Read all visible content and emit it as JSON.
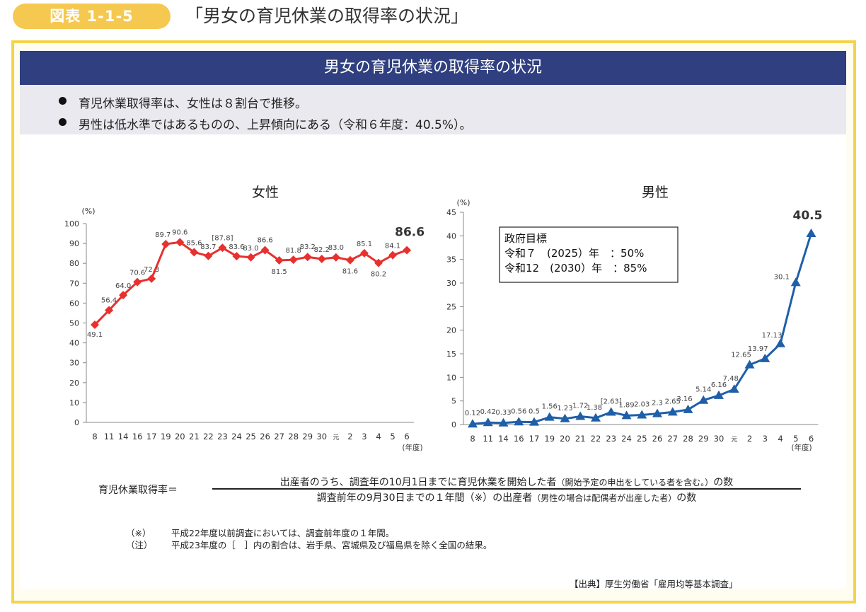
{
  "header": {
    "badge": "図表 1-1-5",
    "title": "「男女の育児休業の取得率の状況」"
  },
  "banner": "男女の育児休業の取得率の状況",
  "bullets": [
    "育児休業取得率は、女性は８割台で推移。",
    "男性は低水準ではあるものの、上昇傾向にある（令和６年度：40.5%）。"
  ],
  "chart_data": [
    {
      "type": "line",
      "title": "女性",
      "ylabel": "(%)",
      "xlabel": "(年度)",
      "ylim": [
        0,
        100
      ],
      "yticks": [
        0,
        10,
        20,
        30,
        40,
        50,
        60,
        70,
        80,
        90,
        100
      ],
      "categories": [
        "8",
        "11",
        "14",
        "16",
        "17",
        "19",
        "20",
        "21",
        "22",
        "23",
        "24",
        "25",
        "26",
        "27",
        "28",
        "29",
        "30",
        "元",
        "2",
        "3",
        "4",
        "5",
        "6"
      ],
      "values": [
        49.1,
        56.4,
        64.0,
        70.6,
        72.3,
        89.7,
        90.6,
        85.6,
        83.7,
        87.8,
        83.6,
        83.0,
        86.6,
        81.5,
        81.8,
        83.2,
        82.2,
        83.0,
        81.6,
        85.1,
        80.2,
        84.1,
        86.6
      ],
      "labels": [
        "49.1",
        "56.4",
        "64.0",
        "70.6",
        "72.3",
        "89.7",
        "90.6",
        "85.6",
        "83.7",
        "[87.8]",
        "83.6",
        "83.0",
        "86.6",
        "81.5",
        "81.8",
        "83.2",
        "82.2",
        "83.0",
        "81.6",
        "85.1",
        "80.2",
        "84.1",
        "86.6"
      ],
      "color": "#e8302e",
      "marker": "diamond"
    },
    {
      "type": "line",
      "title": "男性",
      "ylabel": "(%)",
      "xlabel": "(年度)",
      "ylim": [
        0,
        45
      ],
      "yticks": [
        0,
        5,
        10,
        15,
        20,
        25,
        30,
        35,
        40,
        45
      ],
      "categories": [
        "8",
        "11",
        "14",
        "16",
        "17",
        "19",
        "20",
        "21",
        "22",
        "23",
        "24",
        "25",
        "26",
        "27",
        "28",
        "29",
        "30",
        "元",
        "2",
        "3",
        "4",
        "5",
        "6"
      ],
      "values": [
        0.12,
        0.42,
        0.33,
        0.56,
        0.5,
        1.56,
        1.23,
        1.72,
        1.38,
        2.63,
        1.89,
        2.03,
        2.3,
        2.65,
        3.16,
        5.14,
        6.16,
        7.48,
        12.65,
        13.97,
        17.13,
        30.1,
        40.5
      ],
      "labels": [
        "0.12",
        "0.42",
        "0.33",
        "0.56",
        "0.5",
        "1.56",
        "1.23",
        "1.72",
        "1.38",
        "[2.63]",
        "1.89",
        "2.03",
        "2.3",
        "2.65",
        "3.16",
        "5.14",
        "6.16",
        "7.48",
        "12.65",
        "13.97",
        "17.13",
        "30.1",
        "40.5"
      ],
      "color": "#1f5fa8",
      "marker": "triangle",
      "annotation": [
        "政府目標",
        "令和７　(2025）年　：50%",
        "令和12　(2030）年　：85%"
      ]
    }
  ],
  "formula": {
    "label": "育児休業取得率＝",
    "numerator": "出産者のうち、調査年の10月1日までに育児休業を開始した者",
    "numerator_small": "（開始予定の申出をしている者を含む。）",
    "numerator_end": "の数",
    "denominator": "調査前年の9月30日までの１年間（※）の出産者",
    "denominator_small": "（男性の場合は配偶者が出産した者）",
    "denominator_end": "の数"
  },
  "notes": [
    {
      "tag": "（※）",
      "text": "平成22年度以前調査においては、調査前年度の１年間。"
    },
    {
      "tag": "（注）",
      "text": "平成23年度の［　］内の割合は、岩手県、宮城県及び福島県を除く全国の結果。"
    }
  ],
  "source": "【出典】厚生労働省「雇用均等基本調査」"
}
